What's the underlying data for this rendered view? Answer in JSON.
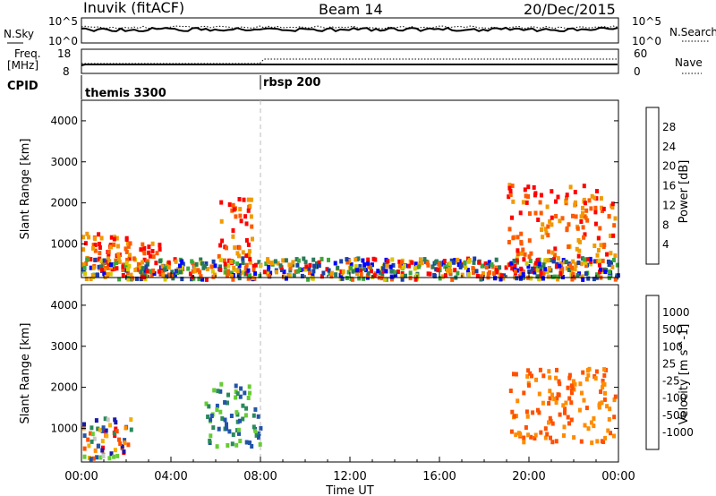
{
  "header": {
    "station": "Inuvik (fitACF)",
    "beam": "Beam 14",
    "date": "20/Dec/2015"
  },
  "side_labels": {
    "nsky": "N.Sky",
    "freq_line1": "Freq.",
    "freq_line2": "[MHz]",
    "cpid": "CPID",
    "nsearch": "N.Search",
    "nave": "Nave"
  },
  "top_panel": {
    "left_ticks": [
      "10^5",
      "10^0"
    ],
    "right_ticks": [
      "10^5",
      "10^0"
    ]
  },
  "freq_panel": {
    "left_ticks": [
      "18",
      "8"
    ],
    "right_ticks": [
      "60",
      "0"
    ]
  },
  "cpid_panel": {
    "programs": [
      {
        "name": "themis 3300",
        "start_hour": 0
      },
      {
        "name": "rbsp 200",
        "start_hour": 8
      }
    ]
  },
  "colors": {
    "power": [
      "#0000ff",
      "#1a3fa8",
      "#2a7a5a",
      "#3aa83a",
      "#d8c800",
      "#f09a00",
      "#ff5a00",
      "#ff0000"
    ],
    "velocity": [
      "#ff0000",
      "#ff5000",
      "#ff8c00",
      "#f0b000",
      "#c8c8c8",
      "#66cc33",
      "#2a8a5a",
      "#2255aa",
      "#1a1aaa"
    ]
  },
  "chart_data": [
    {
      "type": "heatmap",
      "title": "",
      "xlabel": "",
      "ylabel": "Slant Range [km]",
      "xlim": [
        0,
        24
      ],
      "ylim": [
        180,
        4500
      ],
      "yticks": [
        1000,
        2000,
        3000,
        4000
      ],
      "colorbar": {
        "label": "Power [dB]",
        "ticks": [
          "4",
          "8",
          "12",
          "16",
          "20",
          "24",
          "28"
        ]
      },
      "data_note_regions": [
        {
          "x": [
            0.0,
            2.2
          ],
          "y": [
            300,
            1300
          ],
          "level": "high"
        },
        {
          "x": [
            2.5,
            3.5
          ],
          "y": [
            300,
            1100
          ],
          "level": "high"
        },
        {
          "x": [
            6.0,
            7.6
          ],
          "y": [
            600,
            2200
          ],
          "level": "high"
        },
        {
          "x": [
            19.0,
            23.8
          ],
          "y": [
            700,
            2500
          ],
          "level": "high"
        },
        {
          "x": [
            0.0,
            24.0
          ],
          "y": [
            180,
            700
          ],
          "level": "mixed"
        }
      ]
    },
    {
      "type": "heatmap",
      "title": "",
      "xlabel": "Time UT",
      "ylabel": "Slant Range [km]",
      "xlim": [
        0,
        24
      ],
      "ylim": [
        180,
        4500
      ],
      "xticks": [
        "00:00",
        "04:00",
        "08:00",
        "12:00",
        "16:00",
        "20:00",
        "00:00"
      ],
      "yticks": [
        1000,
        2000,
        3000,
        4000
      ],
      "colorbar": {
        "label": "Velocity [m s^-1]",
        "ticks": [
          "1000",
          "500",
          "100",
          "25",
          "-25",
          "-100",
          "-500",
          "-1000"
        ]
      },
      "data_note_regions": [
        {
          "x": [
            0.0,
            2.2
          ],
          "y": [
            300,
            1300
          ],
          "level": "mixed"
        },
        {
          "x": [
            5.5,
            8.0
          ],
          "y": [
            600,
            2200
          ],
          "level": "positive"
        },
        {
          "x": [
            19.0,
            23.8
          ],
          "y": [
            700,
            2500
          ],
          "level": "negative"
        }
      ]
    }
  ]
}
